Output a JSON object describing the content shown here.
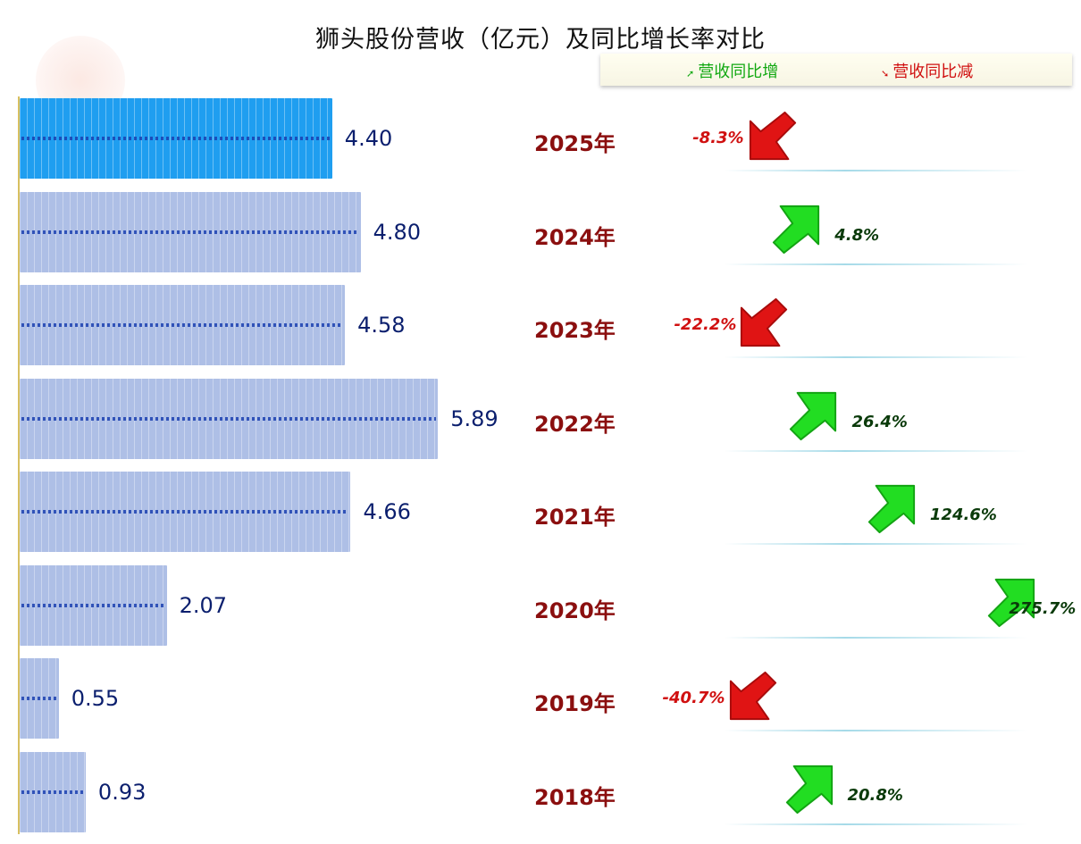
{
  "chart_data": {
    "type": "bar",
    "title": "狮头股份营收（亿元）及同比增长率对比",
    "legend": {
      "up_label": "营收同比增",
      "down_label": "营收同比减",
      "position": "top-right"
    },
    "categories": [
      "2025年",
      "2024年",
      "2023年",
      "2022年",
      "2021年",
      "2020年",
      "2019年",
      "2018年"
    ],
    "series": [
      {
        "values": [
          4.4,
          4.8,
          4.58,
          5.89,
          4.66,
          2.07,
          0.55,
          0.93
        ]
      },
      {
        "values": [
          -8.3,
          4.8,
          -22.2,
          26.4,
          124.6,
          275.7,
          -40.7,
          20.8
        ]
      }
    ],
    "value_labels": [
      "4.40",
      "4.80",
      "4.58",
      "5.89",
      "4.66",
      "2.07",
      "0.55",
      "0.93"
    ],
    "pct_labels": [
      "-8.3%",
      "4.8%",
      "-22.2%",
      "26.4%",
      "124.6%",
      "275.7%",
      "-40.7%",
      "20.8%"
    ],
    "colors": {
      "up": "#22dd22",
      "down": "#e01414",
      "bar": "#aebfe6",
      "bar_highlight": "#1f9ef0",
      "year": "#8b0f0f",
      "value": "#0b1f6e"
    }
  }
}
